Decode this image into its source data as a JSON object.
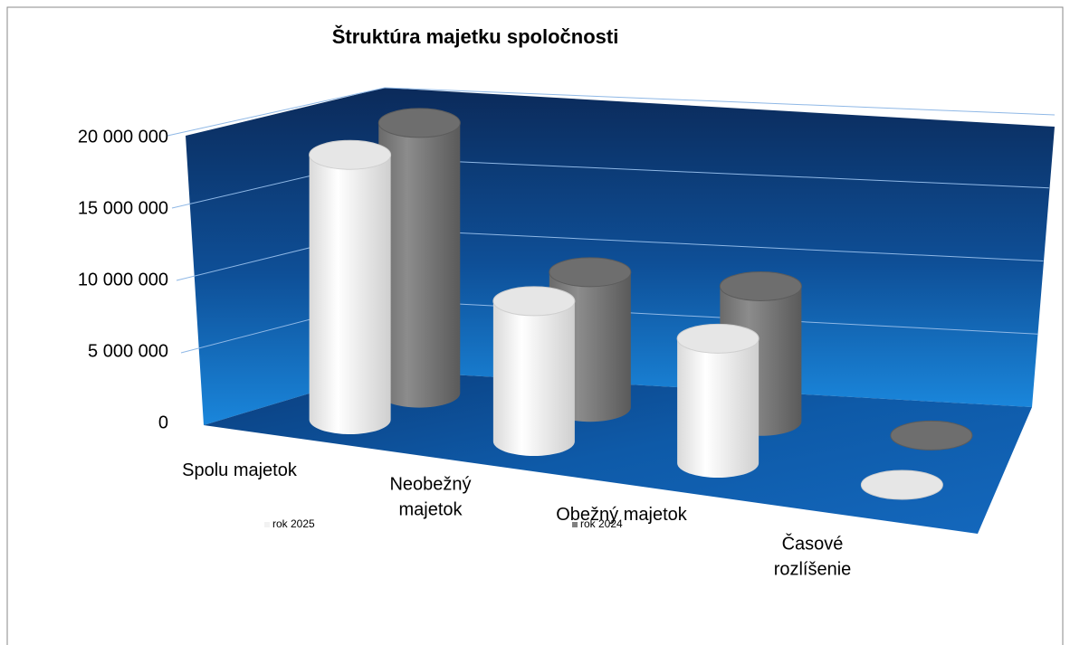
{
  "chart_data": {
    "type": "bar3d-cylinder",
    "title": "Štruktúra majetku spoločnosti",
    "categories": [
      "Spolu majetok",
      "Neobežný majetok",
      "Obežný majetok",
      "Časové rozlíšenie"
    ],
    "series": [
      {
        "name": "rok 2025",
        "color": "#f2f2f2",
        "values": [
          18500000,
          9800000,
          8700000,
          0
        ]
      },
      {
        "name": "rok 2024",
        "color": "#808080",
        "values": [
          19000000,
          9500000,
          9500000,
          0
        ]
      }
    ],
    "ylim": [
      0,
      20000000
    ],
    "yticks": [
      {
        "value": 0,
        "label": "0"
      },
      {
        "value": 5000000,
        "label": "5 000 000"
      },
      {
        "value": 10000000,
        "label": "10 000 000"
      },
      {
        "value": 15000000,
        "label": "15 000 000"
      },
      {
        "value": 20000000,
        "label": "20 000 000"
      }
    ],
    "grid": true
  }
}
